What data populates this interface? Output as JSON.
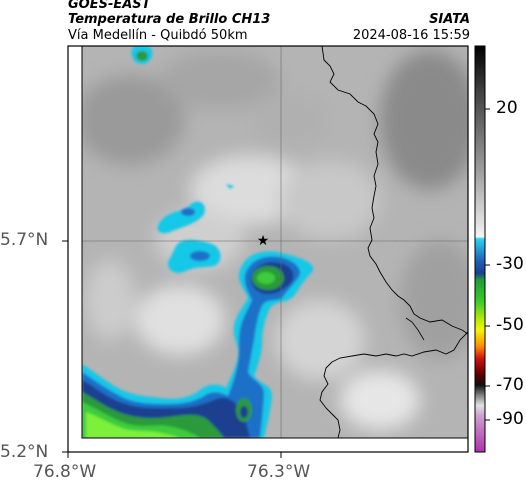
{
  "header": {
    "source": "GOES-EAST",
    "product": "Temperatura de Brillo CH13",
    "agency": "SIATA",
    "region": "Vía Medellín - Quibdó 50km",
    "timestamp": "2024-08-16 15:59"
  },
  "map": {
    "lat_ticks": [
      "5.7°N",
      "5.2°N"
    ],
    "lon_ticks": [
      "76.8°W",
      "76.3°W"
    ],
    "marker": "star-marker",
    "gridlines": true,
    "colors": {
      "cold_cyan": "#19c8e8",
      "blue": "#1f6fc8",
      "dark_blue": "#1a3f8f",
      "green": "#3cbf3c",
      "bright_green": "#7cf03a",
      "border": "#000000"
    }
  },
  "colorbar": {
    "ticks": [
      "20",
      "-30",
      "-50",
      "-70",
      "-90"
    ],
    "colors": [
      "#000000",
      "#808080",
      "#ffffff",
      "#19c8e8",
      "#1a3f8f",
      "#2aa82a",
      "#f5f500",
      "#ff8c00",
      "#cc0000",
      "#1a0000",
      "#c8a0c8",
      "#c040c0"
    ]
  }
}
